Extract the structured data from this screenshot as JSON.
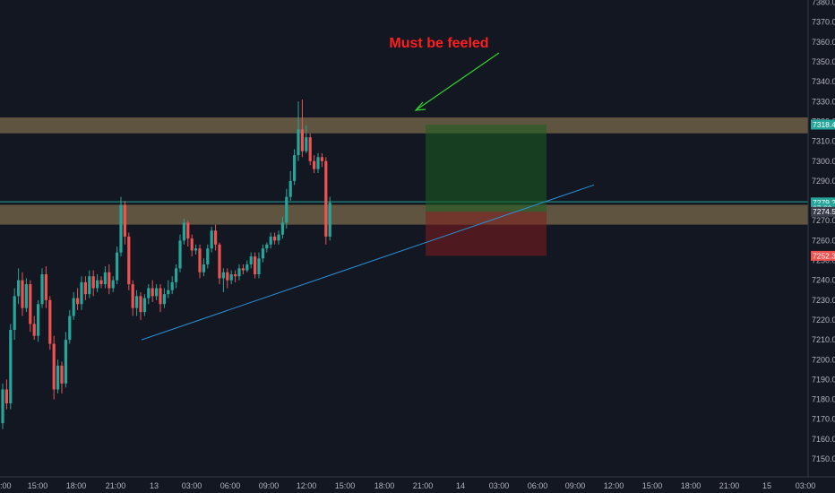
{
  "chart_data": {
    "type": "candlestick",
    "annotation": "Must be feeled",
    "y_range": [
      7142,
      7382
    ],
    "y_ticks": [
      7150,
      7160,
      7170,
      7180,
      7190,
      7200,
      7210,
      7220,
      7230,
      7240,
      7250,
      7260,
      7270,
      7280,
      7290,
      7300,
      7310,
      7320,
      7330,
      7340,
      7350,
      7360,
      7370,
      7380
    ],
    "y_tick_labels": [
      "7150.0",
      "7160.0",
      "7170.0",
      "7180.0",
      "7190.0",
      "7200.0",
      "7210.0",
      "7220.0",
      "7230.0",
      "7240.0",
      "7250.0",
      "7260.0",
      "7270.0",
      "7280.0",
      "7290.0",
      "7300.0",
      "7310.0",
      "7320.0",
      "7330.0",
      "7340.0",
      "7350.0",
      "7360.0",
      "7370.0",
      "7380.0"
    ],
    "x_tick_labels": [
      ":00",
      "15:00",
      "18:00",
      "21:00",
      "13",
      "03:00",
      "06:00",
      "09:00",
      "12:00",
      "15:00",
      "18:00",
      "21:00",
      "14",
      "03:00",
      "06:00",
      "09:00",
      "12:00",
      "15:00",
      "18:00",
      "21:00",
      "15",
      "03:00"
    ],
    "price_tags": [
      {
        "text": "7318.4",
        "price": 7318.4,
        "color": "#26a69a"
      },
      {
        "text": "7279.2",
        "price": 7279.2,
        "color": "#26a69a"
      },
      {
        "text": "07:22",
        "price": 7276.2,
        "color": "#26a69a"
      },
      {
        "text": "7274.5",
        "price": 7274.5,
        "color": "#3a3f4b"
      },
      {
        "text": "7252.3",
        "price": 7252.3,
        "color": "#ef5350"
      }
    ],
    "resistance_zone": {
      "low": 7314,
      "high": 7322,
      "color": "#c8a96a"
    },
    "support_zone": {
      "low": 7268,
      "high": 7278,
      "color": "#c8a96a"
    },
    "horizontal_line": {
      "price": 7279.5,
      "color": "#26a69a"
    },
    "position": {
      "entry": 7274.5,
      "target": 7318.4,
      "stop": 7252.3
    },
    "trendline_start_price": 7210,
    "trendline_end_price": 7288,
    "colors": {
      "up": "#26a69a",
      "down": "#ef5350",
      "background": "#131722",
      "trendline": "#2a8fd6",
      "arrow": "#32d22c"
    },
    "candles": [
      [
        7168,
        7185,
        7165,
        7188
      ],
      [
        7185,
        7178,
        7175,
        7190
      ],
      [
        7178,
        7215,
        7175,
        7218
      ],
      [
        7215,
        7232,
        7210,
        7236
      ],
      [
        7232,
        7240,
        7228,
        7246
      ],
      [
        7240,
        7226,
        7222,
        7244
      ],
      [
        7226,
        7238,
        7224,
        7241
      ],
      [
        7238,
        7218,
        7214,
        7240
      ],
      [
        7218,
        7212,
        7210,
        7222
      ],
      [
        7212,
        7228,
        7209,
        7230
      ],
      [
        7228,
        7243,
        7226,
        7246
      ],
      [
        7243,
        7230,
        7226,
        7247
      ],
      [
        7230,
        7208,
        7205,
        7232
      ],
      [
        7208,
        7185,
        7180,
        7212
      ],
      [
        7185,
        7197,
        7183,
        7200
      ],
      [
        7197,
        7188,
        7183,
        7199
      ],
      [
        7188,
        7210,
        7186,
        7214
      ],
      [
        7210,
        7222,
        7208,
        7225
      ],
      [
        7222,
        7231,
        7220,
        7234
      ],
      [
        7231,
        7228,
        7225,
        7236
      ],
      [
        7228,
        7239,
        7225,
        7242
      ],
      [
        7239,
        7233,
        7230,
        7242
      ],
      [
        7233,
        7242,
        7231,
        7245
      ],
      [
        7242,
        7236,
        7232,
        7245
      ],
      [
        7236,
        7240,
        7234,
        7243
      ],
      [
        7240,
        7238,
        7236,
        7242
      ],
      [
        7238,
        7244,
        7236,
        7247
      ],
      [
        7244,
        7236,
        7233,
        7248
      ],
      [
        7236,
        7240,
        7234,
        7242
      ],
      [
        7240,
        7254,
        7238,
        7257
      ],
      [
        7254,
        7278,
        7252,
        7282
      ],
      [
        7278,
        7262,
        7258,
        7280
      ],
      [
        7262,
        7238,
        7235,
        7264
      ],
      [
        7238,
        7226,
        7222,
        7240
      ],
      [
        7226,
        7232,
        7222,
        7235
      ],
      [
        7232,
        7224,
        7220,
        7234
      ],
      [
        7224,
        7231,
        7222,
        7233
      ],
      [
        7231,
        7236,
        7228,
        7238
      ],
      [
        7236,
        7232,
        7229,
        7240
      ],
      [
        7232,
        7236,
        7230,
        7238
      ],
      [
        7236,
        7228,
        7224,
        7238
      ],
      [
        7228,
        7233,
        7226,
        7236
      ],
      [
        7233,
        7235,
        7231,
        7240
      ],
      [
        7235,
        7239,
        7233,
        7242
      ],
      [
        7239,
        7246,
        7236,
        7248
      ],
      [
        7246,
        7260,
        7244,
        7263
      ],
      [
        7260,
        7269,
        7258,
        7271
      ],
      [
        7269,
        7261,
        7257,
        7270
      ],
      [
        7261,
        7255,
        7252,
        7263
      ],
      [
        7255,
        7256,
        7253,
        7258
      ],
      [
        7256,
        7244,
        7241,
        7258
      ],
      [
        7244,
        7248,
        7242,
        7251
      ],
      [
        7248,
        7256,
        7246,
        7258
      ],
      [
        7256,
        7265,
        7254,
        7267
      ],
      [
        7265,
        7258,
        7255,
        7268
      ],
      [
        7258,
        7241,
        7238,
        7259
      ],
      [
        7241,
        7244,
        7234,
        7246
      ],
      [
        7244,
        7240,
        7236,
        7246
      ],
      [
        7240,
        7243,
        7238,
        7245
      ],
      [
        7243,
        7242,
        7239,
        7245
      ],
      [
        7242,
        7246,
        7240,
        7248
      ],
      [
        7246,
        7245,
        7243,
        7248
      ],
      [
        7245,
        7248,
        7244,
        7250
      ],
      [
        7248,
        7252,
        7246,
        7254
      ],
      [
        7252,
        7243,
        7241,
        7254
      ],
      [
        7243,
        7251,
        7241,
        7254
      ],
      [
        7251,
        7256,
        7249,
        7258
      ],
      [
        7256,
        7258,
        7254,
        7259
      ],
      [
        7258,
        7262,
        7256,
        7264
      ],
      [
        7262,
        7260,
        7258,
        7264
      ],
      [
        7260,
        7263,
        7258,
        7265
      ],
      [
        7263,
        7269,
        7261,
        7272
      ],
      [
        7269,
        7282,
        7266,
        7286
      ],
      [
        7282,
        7290,
        7280,
        7295
      ],
      [
        7290,
        7303,
        7288,
        7306
      ],
      [
        7303,
        7316,
        7300,
        7330
      ],
      [
        7316,
        7305,
        7302,
        7331
      ],
      [
        7305,
        7312,
        7304,
        7318
      ],
      [
        7312,
        7300,
        7298,
        7314
      ],
      [
        7300,
        7296,
        7294,
        7303
      ],
      [
        7296,
        7302,
        7294,
        7304
      ],
      [
        7302,
        7300,
        7297,
        7304
      ],
      [
        7300,
        7262,
        7258,
        7302
      ],
      [
        7262,
        7279,
        7260,
        7282
      ]
    ]
  }
}
